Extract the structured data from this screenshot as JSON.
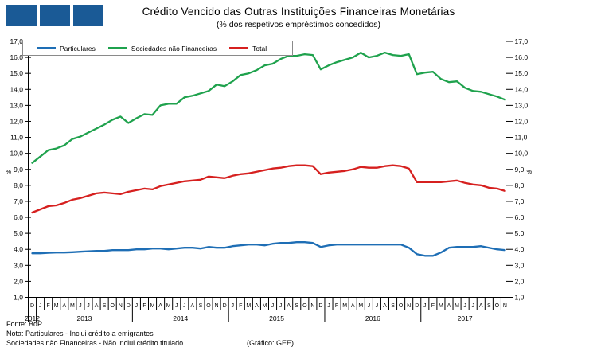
{
  "logo": {
    "color": "#1a5a96",
    "square_count": 3
  },
  "header": {
    "title": "Crédito Vencido das Outras Instituições Financeiras Monetárias",
    "subtitle": "(% dos respetivos empréstimos concedidos)"
  },
  "footer": {
    "fonte": "Fonte: BdP",
    "nota1": "Nota: Particulares - Inclui crédito a emigrantes",
    "nota2": "Sociedades não Financeiras - Não inclui crédito titulado",
    "grafico": "(Gráfico: GEE)"
  },
  "chart_data": {
    "type": "line",
    "unit": "%",
    "ylim": [
      1.0,
      17.0
    ],
    "ytick_step": 1.0,
    "ytick_decimal_separator": ",",
    "grid": false,
    "legend_position": "top-left",
    "x_monthly_labels": [
      "D",
      "J",
      "F",
      "M",
      "A",
      "M",
      "J",
      "J",
      "A",
      "S",
      "O",
      "N",
      "D",
      "J",
      "F",
      "M",
      "A",
      "M",
      "J",
      "J",
      "A",
      "S",
      "O",
      "N",
      "D",
      "J",
      "F",
      "M",
      "A",
      "M",
      "J",
      "J",
      "A",
      "S",
      "O",
      "N",
      "D",
      "J",
      "F",
      "M",
      "A",
      "M",
      "J",
      "J",
      "A",
      "S",
      "O",
      "N",
      "D",
      "J",
      "F",
      "M",
      "A",
      "M",
      "J",
      "J",
      "A",
      "S",
      "O",
      "N"
    ],
    "years": [
      {
        "label": "2012",
        "months": 1
      },
      {
        "label": "2013",
        "months": 12
      },
      {
        "label": "2014",
        "months": 12
      },
      {
        "label": "2015",
        "months": 12
      },
      {
        "label": "2016",
        "months": 12
      },
      {
        "label": "2017",
        "months": 11
      }
    ],
    "series": [
      {
        "name": "Particulares",
        "color": "#1e6eb5",
        "values": [
          3.75,
          3.75,
          3.78,
          3.8,
          3.8,
          3.82,
          3.85,
          3.88,
          3.9,
          3.9,
          3.95,
          3.95,
          3.95,
          4.0,
          4.0,
          4.05,
          4.05,
          4.0,
          4.05,
          4.1,
          4.1,
          4.05,
          4.15,
          4.1,
          4.1,
          4.2,
          4.25,
          4.3,
          4.3,
          4.25,
          4.35,
          4.4,
          4.4,
          4.45,
          4.45,
          4.4,
          4.15,
          4.25,
          4.3,
          4.3,
          4.3,
          4.3,
          4.3,
          4.3,
          4.3,
          4.3,
          4.3,
          4.1,
          3.7,
          3.6,
          3.6,
          3.8,
          4.1,
          4.15,
          4.15,
          4.15,
          4.2,
          4.1,
          4.0,
          3.95
        ]
      },
      {
        "name": "Sociedades não Financeiras",
        "color": "#1fa24d",
        "values": [
          9.4,
          9.8,
          10.2,
          10.3,
          10.5,
          10.9,
          11.05,
          11.3,
          11.55,
          11.8,
          12.1,
          12.3,
          11.9,
          12.2,
          12.45,
          12.4,
          13.0,
          13.1,
          13.1,
          13.5,
          13.6,
          13.75,
          13.9,
          14.3,
          14.2,
          14.5,
          14.9,
          15.0,
          15.2,
          15.5,
          15.6,
          15.9,
          16.1,
          16.1,
          16.2,
          16.15,
          15.25,
          15.5,
          15.7,
          15.85,
          16.0,
          16.3,
          16.0,
          16.1,
          16.3,
          16.15,
          16.1,
          16.2,
          14.95,
          15.05,
          15.1,
          14.65,
          14.45,
          14.5,
          14.1,
          13.9,
          13.85,
          13.7,
          13.55,
          13.35
        ]
      },
      {
        "name": "Total",
        "color": "#d6201f",
        "values": [
          6.3,
          6.5,
          6.7,
          6.75,
          6.9,
          7.1,
          7.2,
          7.35,
          7.5,
          7.55,
          7.5,
          7.45,
          7.6,
          7.7,
          7.8,
          7.75,
          7.95,
          8.05,
          8.15,
          8.25,
          8.3,
          8.35,
          8.55,
          8.5,
          8.45,
          8.6,
          8.7,
          8.75,
          8.85,
          8.95,
          9.05,
          9.1,
          9.2,
          9.25,
          9.25,
          9.2,
          8.7,
          8.8,
          8.85,
          8.9,
          9.0,
          9.15,
          9.1,
          9.1,
          9.2,
          9.25,
          9.2,
          9.05,
          8.2,
          8.2,
          8.2,
          8.2,
          8.25,
          8.3,
          8.15,
          8.05,
          8.0,
          7.85,
          7.8,
          7.65
        ]
      }
    ]
  }
}
